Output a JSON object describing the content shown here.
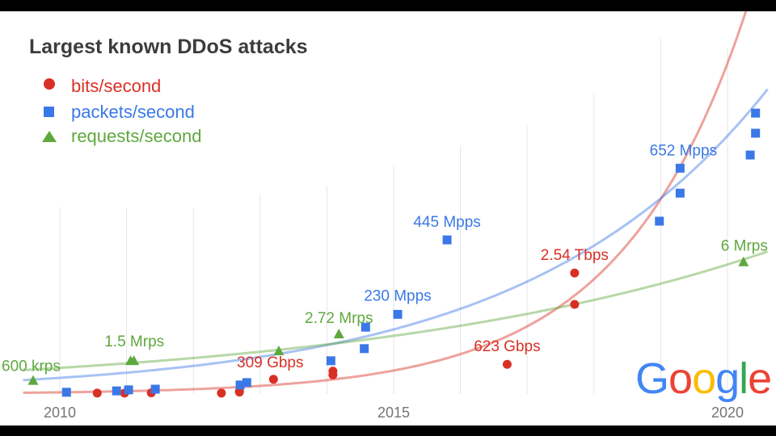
{
  "chart_data": {
    "type": "scatter",
    "title": "Largest known DDoS attacks",
    "xlabel": "",
    "ylabel": "",
    "x_ticks": [
      "2010",
      "2015",
      "2020"
    ],
    "xlim": [
      2009.45,
      2020.6
    ],
    "grid": {
      "vertical": true,
      "horizontal": false,
      "interval_years": 1
    },
    "legend_position": "top-left",
    "series": [
      {
        "name": "bits/second",
        "marker": "circle",
        "color": "#d93025",
        "unit": "Gbps",
        "ylim": [
          0,
          7930
        ],
        "trendline": "exponential",
        "points": [
          [
            2010.56,
            20
          ],
          [
            2010.97,
            20
          ],
          [
            2011.37,
            25
          ],
          [
            2012.42,
            20
          ],
          [
            2012.69,
            40
          ],
          [
            2012.69,
            60
          ],
          [
            2013.2,
            309
          ],
          [
            2014.09,
            480
          ],
          [
            2014.09,
            400
          ],
          [
            2016.7,
            623
          ],
          [
            2017.71,
            2540
          ],
          [
            2017.71,
            1880
          ]
        ]
      },
      {
        "name": "packets/second",
        "marker": "square",
        "color": "#3b78e7",
        "unit": "Mpps",
        "ylim": [
          0,
          1091
        ],
        "trendline": "exponential",
        "points": [
          [
            2010.1,
            5
          ],
          [
            2010.85,
            9
          ],
          [
            2011.03,
            12
          ],
          [
            2011.43,
            14
          ],
          [
            2012.7,
            26
          ],
          [
            2012.8,
            33
          ],
          [
            2014.06,
            96
          ],
          [
            2014.56,
            131
          ],
          [
            2014.58,
            193
          ],
          [
            2015.06,
            230
          ],
          [
            2015.8,
            445
          ],
          [
            2018.98,
            499
          ],
          [
            2019.29,
            580
          ],
          [
            2019.29,
            652
          ],
          [
            2020.34,
            690
          ],
          [
            2020.42,
            753
          ],
          [
            2020.42,
            811
          ]
        ]
      },
      {
        "name": "requests/second",
        "marker": "triangle",
        "color": "#5fa83f",
        "unit": "Mrps",
        "ylim": [
          0,
          17.2
        ],
        "trendline": "exponential",
        "points": [
          [
            2009.6,
            0.6
          ],
          [
            2011.06,
            1.5
          ],
          [
            2011.11,
            1.5
          ],
          [
            2013.28,
            1.95
          ],
          [
            2014.18,
            2.72
          ],
          [
            2020.24,
            6
          ]
        ]
      }
    ],
    "annotations": [
      {
        "text": "600 krps",
        "series": 2,
        "x": 2009.6,
        "y": 0.6
      },
      {
        "text": "1.5 Mrps",
        "series": 2,
        "x": 2011.08,
        "y": 1.5
      },
      {
        "text": "309 Gbps",
        "series": 0,
        "x": 2013.2,
        "y": 309
      },
      {
        "text": "2.72 Mrps",
        "series": 2,
        "x": 2014.18,
        "y": 2.72
      },
      {
        "text": "230 Mpps",
        "series": 1,
        "x": 2015.06,
        "y": 230
      },
      {
        "text": "445 Mpps",
        "series": 1,
        "x": 2015.8,
        "y": 445
      },
      {
        "text": "623 Gbps",
        "series": 0,
        "x": 2016.7,
        "y": 623
      },
      {
        "text": "2.54 Tbps",
        "series": 0,
        "x": 2017.71,
        "y": 2540
      },
      {
        "text": "652 Mpps",
        "series": 1,
        "x": 2019.29,
        "y": 652
      },
      {
        "text": "6 Mrps",
        "series": 2,
        "x": 2020.24,
        "y": 6
      }
    ]
  },
  "logo": {
    "text": "Google",
    "colors": [
      "#4285f4",
      "#ea4335",
      "#fbbc05",
      "#4285f4",
      "#34a853",
      "#ea4335"
    ]
  },
  "colors": {
    "background": "#ffffff",
    "frame": "#000000",
    "grid": "#e6e6e6"
  }
}
